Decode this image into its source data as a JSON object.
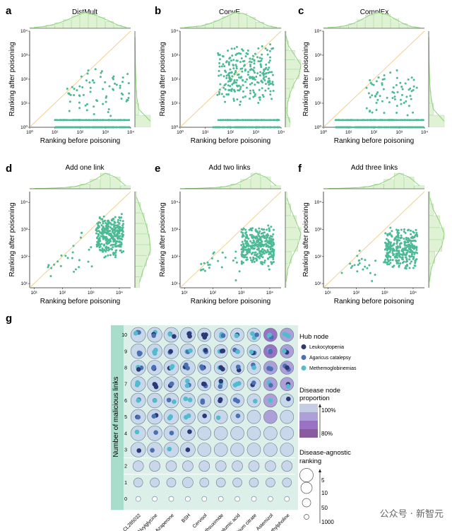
{
  "colors": {
    "point": "#4dba96",
    "diag": "#f0cc88",
    "hist": "#8ed27c",
    "histfill": "#dff2d4",
    "band": "#dcefe8",
    "band_dark": "#a8dccb",
    "circle": "#c9d7ea",
    "circle_stroke": "#6b7a90",
    "hub1": "#2b3a76",
    "hub2": "#4a6fb2",
    "hub3": "#52bccf",
    "purple1": "#c5cde4",
    "purple2": "#ad9fd8",
    "purple3": "#9b71c4",
    "purple4": "#8a5a9e"
  },
  "chart_data": [
    {
      "panel": "a",
      "title": "DistMult",
      "type": "scatter",
      "xlabel": "Ranking before poisoning",
      "ylabel": "Ranking after poisoning",
      "xscale": "log",
      "yscale": "log",
      "xlim": [
        1,
        10000
      ],
      "ylim": [
        1,
        10000
      ],
      "xticks": [
        "10⁰",
        "10¹",
        "10²",
        "10³",
        "10⁴"
      ],
      "yticks": [
        "10⁰",
        "10¹",
        "10²",
        "10³",
        "10⁴"
      ],
      "diagonal": true,
      "clusters": [
        {
          "x": [
            10,
            9000
          ],
          "y": [
            1,
            1
          ],
          "n": 150,
          "band": true
        },
        {
          "x": [
            10,
            9000
          ],
          "y": [
            2,
            2
          ],
          "n": 40,
          "band": true
        },
        {
          "x": [
            30,
            9000
          ],
          "y": [
            2,
            500
          ],
          "n": 70
        }
      ],
      "hist_top": [
        0.05,
        0.1,
        0.2,
        0.35,
        0.55,
        0.8,
        1.0,
        0.9,
        0.7,
        0.45,
        0.2,
        0.05
      ],
      "hist_right": [
        1.0,
        0.25,
        0.12,
        0.08,
        0.05,
        0.03,
        0.02,
        0.01
      ]
    },
    {
      "panel": "b",
      "title": "ConvE",
      "type": "scatter",
      "xlabel": "Ranking before poisoning",
      "ylabel": "Ranking after poisoning",
      "xscale": "log",
      "yscale": "log",
      "xlim": [
        1,
        10000
      ],
      "ylim": [
        1,
        10000
      ],
      "xticks": [
        "10⁰",
        "10¹",
        "10²",
        "10³",
        "10⁴"
      ],
      "yticks": [
        "10⁰",
        "10¹",
        "10²",
        "10³",
        "10⁴"
      ],
      "diagonal": true,
      "clusters": [
        {
          "x": [
            20,
            9000
          ],
          "y": [
            1,
            1
          ],
          "n": 70,
          "band": true
        },
        {
          "x": [
            30,
            9000
          ],
          "y": [
            2,
            2
          ],
          "n": 30,
          "band": true
        },
        {
          "x": [
            30,
            5000
          ],
          "y": [
            5,
            3000
          ],
          "n": 260
        }
      ],
      "hist_top": [
        0.05,
        0.1,
        0.15,
        0.3,
        0.5,
        0.75,
        1.0,
        0.95,
        0.7,
        0.4,
        0.15,
        0.05
      ],
      "hist_right": [
        0.3,
        0.1,
        0.15,
        0.3,
        0.55,
        0.9,
        1.0,
        0.6,
        0.2,
        0.05
      ]
    },
    {
      "panel": "c",
      "title": "ComplEx",
      "type": "scatter",
      "xlabel": "Ranking before poisoning",
      "ylabel": "Ranking after poisoning",
      "xscale": "log",
      "yscale": "log",
      "xlim": [
        1,
        10000
      ],
      "ylim": [
        1,
        10000
      ],
      "xticks": [
        "10⁰",
        "10¹",
        "10²",
        "10³",
        "10⁴"
      ],
      "yticks": [
        "10⁰",
        "10¹",
        "10²",
        "10³",
        "10⁴"
      ],
      "diagonal": true,
      "clusters": [
        {
          "x": [
            3,
            9000
          ],
          "y": [
            1,
            1
          ],
          "n": 150,
          "band": true
        },
        {
          "x": [
            3,
            9000
          ],
          "y": [
            2,
            2
          ],
          "n": 50,
          "band": true
        },
        {
          "x": [
            50,
            5000
          ],
          "y": [
            2,
            300
          ],
          "n": 70
        }
      ],
      "hist_top": [
        0.05,
        0.08,
        0.15,
        0.3,
        0.55,
        0.85,
        1.0,
        0.9,
        0.6,
        0.3,
        0.1,
        0.03
      ],
      "hist_right": [
        1.0,
        0.3,
        0.15,
        0.08,
        0.05,
        0.03,
        0.02,
        0.01
      ]
    },
    {
      "panel": "d",
      "title": "Add one link",
      "type": "scatter",
      "xlabel": "Ranking before poisoning",
      "ylabel": "Ranking after poisoning",
      "xscale": "log",
      "yscale": "log",
      "xlim": [
        7,
        25000
      ],
      "ylim": [
        7,
        25000
      ],
      "xticks": [
        "10¹",
        "10²",
        "10³",
        "10⁴"
      ],
      "yticks": [
        "10¹",
        "10²",
        "10³",
        "10⁴"
      ],
      "diagonal": true,
      "clusters": [
        {
          "x": [
            1500,
            14000
          ],
          "y": [
            80,
            4000
          ],
          "n": 320
        },
        {
          "x": [
            30,
            1500
          ],
          "y": [
            10,
            1000
          ],
          "n": 25
        }
      ],
      "hist_top": [
        0.02,
        0.03,
        0.05,
        0.08,
        0.15,
        0.3,
        0.6,
        1.0,
        0.75,
        0.2
      ],
      "hist_right": [
        0.3,
        0.5,
        0.75,
        1.0,
        0.95,
        0.8,
        0.6,
        0.35,
        0.1
      ]
    },
    {
      "panel": "e",
      "title": "Add two links",
      "type": "scatter",
      "xlabel": "Ranking before poisoning",
      "ylabel": "Ranking after poisoning",
      "xscale": "log",
      "yscale": "log",
      "xlim": [
        7,
        25000
      ],
      "ylim": [
        7,
        25000
      ],
      "xticks": [
        "10¹",
        "10²",
        "10³",
        "10⁴"
      ],
      "yticks": [
        "10¹",
        "10²",
        "10³",
        "10⁴"
      ],
      "diagonal": true,
      "clusters": [
        {
          "x": [
            1000,
            14000
          ],
          "y": [
            30,
            1500
          ],
          "n": 320
        },
        {
          "x": [
            30,
            1500
          ],
          "y": [
            10,
            300
          ],
          "n": 25
        }
      ],
      "hist_top": [
        0.02,
        0.03,
        0.05,
        0.08,
        0.15,
        0.3,
        0.6,
        1.0,
        0.75,
        0.2
      ],
      "hist_right": [
        0.05,
        0.15,
        0.4,
        0.8,
        1.0,
        0.7,
        0.35,
        0.1
      ]
    },
    {
      "panel": "f",
      "title": "Add three links",
      "type": "scatter",
      "xlabel": "Ranking before poisoning",
      "ylabel": "Ranking after poisoning",
      "xscale": "log",
      "yscale": "log",
      "xlim": [
        7,
        25000
      ],
      "ylim": [
        7,
        25000
      ],
      "xticks": [
        "10¹",
        "10²",
        "10³",
        "10⁴"
      ],
      "yticks": [
        "10¹",
        "10²",
        "10³",
        "10⁴"
      ],
      "diagonal": true,
      "clusters": [
        {
          "x": [
            1000,
            14000
          ],
          "y": [
            30,
            1200
          ],
          "n": 320
        },
        {
          "x": [
            30,
            1500
          ],
          "y": [
            10,
            300
          ],
          "n": 25
        }
      ],
      "hist_top": [
        0.02,
        0.03,
        0.05,
        0.08,
        0.15,
        0.3,
        0.6,
        1.0,
        0.75,
        0.2
      ],
      "hist_right": [
        0.05,
        0.15,
        0.4,
        0.85,
        1.0,
        0.7,
        0.3,
        0.08
      ]
    },
    {
      "panel": "g",
      "type": "bubble_matrix",
      "ylabel": "Number of malicious links",
      "rows": [
        10,
        9,
        8,
        7,
        6,
        5,
        4,
        3,
        2,
        1,
        0
      ],
      "columns": [
        "CL285032",
        "Alvylglycine",
        "Azaperone",
        "BSH",
        "Cervisol",
        "Methsuximide",
        "Carglumic acid",
        "Lithium citrate",
        "Astemizol",
        "N-trimethylpholine"
      ],
      "legend": {
        "hub_title": "Hub node",
        "hubs": [
          "Leukocytopenia",
          "Agaricus catalepsy",
          "Methemoglobinemias"
        ],
        "proportion_title": "Disease node\nproportion",
        "proportion_labels": [
          "100%",
          "80%"
        ],
        "ranking_title": "Disease-agnostic\nranking",
        "ranking_labels": [
          "5",
          "10",
          "50",
          "1000"
        ]
      }
    }
  ],
  "watermark": "公众号 · 新智元",
  "panel_letters": [
    "a",
    "b",
    "c",
    "d",
    "e",
    "f",
    "g"
  ]
}
